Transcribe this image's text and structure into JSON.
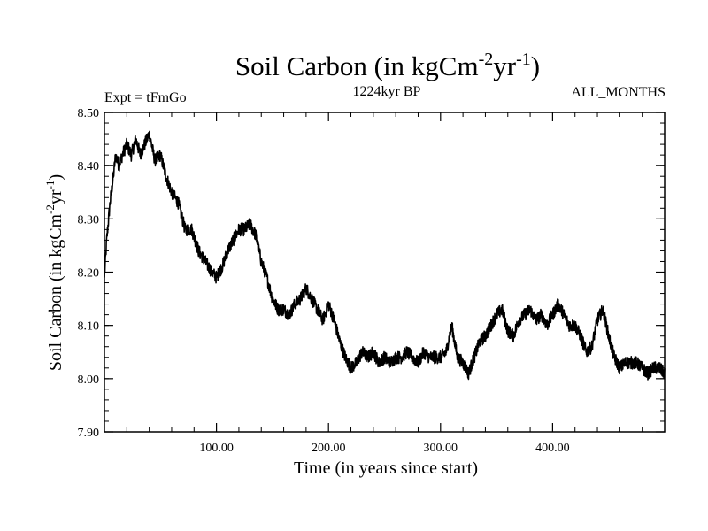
{
  "chart_data": {
    "type": "line",
    "title_main": "Soil Carbon (in kgCm",
    "title_sup1": "-2",
    "title_mid": "yr",
    "title_sup2": "-1",
    "title_end": ")",
    "expt_label": "Expt = tFmGo",
    "period_label": "1224kyr BP",
    "months_label": "ALL_MONTHS",
    "xlabel": "Time (in years since start)",
    "ylabel_main": "Soil Carbon (in kgCm",
    "ylabel_sup1": "-2",
    "ylabel_mid": "yr",
    "ylabel_sup2": "-1",
    "ylabel_end": ")",
    "xlim": [
      0,
      500
    ],
    "ylim": [
      7.9,
      8.5
    ],
    "x_ticks": [
      100,
      200,
      300,
      400
    ],
    "x_tick_labels": [
      "100.00",
      "200.00",
      "300.00",
      "400.00"
    ],
    "y_ticks": [
      7.9,
      8.0,
      8.1,
      8.2,
      8.3,
      8.4,
      8.5
    ],
    "y_tick_labels": [
      "7.90",
      "8.00",
      "8.10",
      "8.20",
      "8.30",
      "8.40",
      "8.50"
    ],
    "line_color": "#000000",
    "noise_amplitude": 0.012,
    "series": [
      {
        "name": "Soil Carbon",
        "x": [
          0,
          2,
          5,
          8,
          10,
          13,
          16,
          20,
          24,
          28,
          32,
          36,
          40,
          45,
          50,
          55,
          60,
          66,
          72,
          78,
          84,
          90,
          96,
          100,
          105,
          110,
          115,
          120,
          125,
          130,
          135,
          140,
          145,
          150,
          155,
          160,
          165,
          170,
          175,
          180,
          185,
          190,
          195,
          200,
          205,
          210,
          215,
          220,
          225,
          230,
          235,
          240,
          245,
          250,
          255,
          260,
          265,
          270,
          275,
          280,
          285,
          290,
          295,
          300,
          305,
          310,
          315,
          320,
          325,
          330,
          335,
          340,
          345,
          350,
          355,
          360,
          365,
          370,
          375,
          380,
          385,
          390,
          395,
          400,
          405,
          410,
          415,
          420,
          425,
          430,
          435,
          440,
          445,
          450,
          455,
          460,
          465,
          470,
          475,
          480,
          485,
          490,
          495,
          500
        ],
        "values": [
          8.19,
          8.26,
          8.33,
          8.38,
          8.42,
          8.4,
          8.42,
          8.44,
          8.42,
          8.45,
          8.42,
          8.44,
          8.46,
          8.41,
          8.42,
          8.38,
          8.35,
          8.33,
          8.28,
          8.28,
          8.24,
          8.22,
          8.2,
          8.19,
          8.21,
          8.24,
          8.26,
          8.28,
          8.28,
          8.29,
          8.27,
          8.22,
          8.19,
          8.15,
          8.13,
          8.13,
          8.12,
          8.14,
          8.15,
          8.17,
          8.15,
          8.13,
          8.11,
          8.14,
          8.11,
          8.07,
          8.04,
          8.02,
          8.03,
          8.05,
          8.04,
          8.05,
          8.03,
          8.04,
          8.03,
          8.04,
          8.04,
          8.05,
          8.04,
          8.03,
          8.05,
          8.04,
          8.04,
          8.04,
          8.05,
          8.1,
          8.04,
          8.03,
          8.01,
          8.04,
          8.07,
          8.08,
          8.1,
          8.12,
          8.13,
          8.09,
          8.08,
          8.11,
          8.12,
          8.13,
          8.11,
          8.12,
          8.1,
          8.12,
          8.14,
          8.12,
          8.1,
          8.1,
          8.08,
          8.05,
          8.06,
          8.11,
          8.13,
          8.08,
          8.04,
          8.02,
          8.03,
          8.03,
          8.03,
          8.02,
          8.01,
          8.02,
          8.02,
          8.01
        ]
      }
    ]
  }
}
